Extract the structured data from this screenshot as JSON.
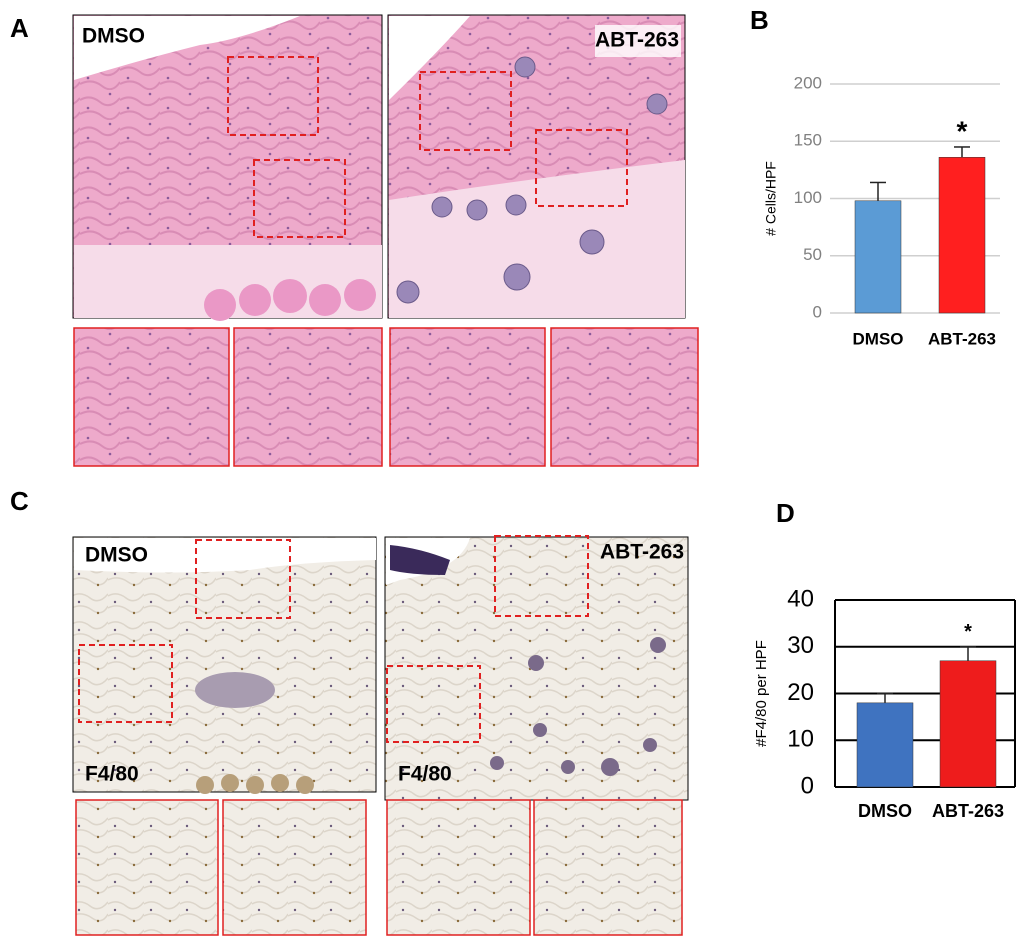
{
  "panels": {
    "a": {
      "label": "A",
      "left": "DMSO",
      "right": "ABT-263"
    },
    "c": {
      "label": "C",
      "left": "DMSO",
      "right": "ABT-263",
      "stain_left": "F4/80",
      "stain_right": "F4/80"
    }
  },
  "chart_data": [
    {
      "type": "bar",
      "panel": "B",
      "ylabel": "# Cells/HPF",
      "categories": [
        "DMSO",
        "ABT-263"
      ],
      "series": [
        {
          "values": [
            98,
            136
          ],
          "errors": [
            16,
            9
          ],
          "colors": [
            "#5b9bd5",
            "#ff1f1f"
          ]
        }
      ],
      "annotation": "*",
      "ylim": [
        0,
        200
      ],
      "yticks": [
        0,
        50,
        100,
        150,
        200
      ],
      "grid": true,
      "grid_color": "#cfcfcf"
    },
    {
      "type": "bar",
      "panel": "D",
      "ylabel": "#F4/80 per HPF",
      "categories": [
        "DMSO",
        "ABT-263"
      ],
      "series": [
        {
          "values": [
            18,
            27
          ],
          "errors": [
            2,
            3
          ],
          "colors": [
            "#3f73c0",
            "#ee1c1c"
          ]
        }
      ],
      "annotation": "*",
      "ylim": [
        0,
        40
      ],
      "yticks": [
        0,
        10,
        20,
        30,
        40
      ],
      "grid": true,
      "grid_color": "#000000"
    }
  ]
}
